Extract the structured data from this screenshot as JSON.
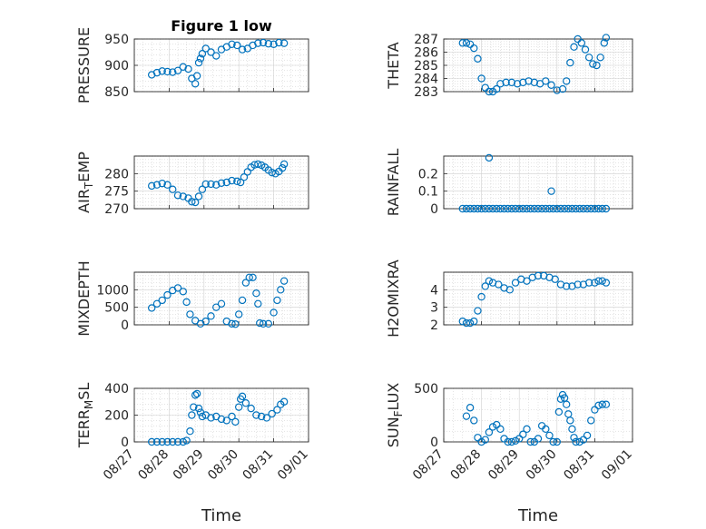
{
  "title": "Figure 1 low",
  "marker_color": "#0072BD",
  "chart_data": [
    {
      "type": "scatter",
      "name": "pressure",
      "ylabel": "PRESSURE",
      "ylim": [
        850,
        950
      ],
      "yticks": [
        850,
        900,
        950
      ],
      "x_tick_labels": [
        "08/27",
        "08/28",
        "08/29",
        "08/30",
        "08/31",
        "09/01"
      ],
      "x_tick_labels_visible": false,
      "xlabel": "",
      "x": [
        0.5,
        0.65,
        0.8,
        0.95,
        1.1,
        1.25,
        1.4,
        1.55,
        1.65,
        1.75,
        1.8,
        1.85,
        1.9,
        1.95,
        2.05,
        2.2,
        2.35,
        2.5,
        2.65,
        2.8,
        2.95,
        3.1,
        3.25,
        3.4,
        3.55,
        3.7,
        3.85,
        4.0,
        4.15,
        4.3
      ],
      "y": [
        882,
        886,
        889,
        888,
        887,
        890,
        897,
        893,
        875,
        865,
        880,
        905,
        913,
        922,
        932,
        925,
        918,
        930,
        935,
        940,
        938,
        930,
        932,
        938,
        942,
        943,
        941,
        940,
        943,
        942
      ]
    },
    {
      "type": "scatter",
      "name": "theta",
      "ylabel": "THETA",
      "ylim": [
        283,
        287
      ],
      "yticks": [
        283,
        284,
        285,
        286,
        287
      ],
      "x_tick_labels": [
        "08/27",
        "08/28",
        "08/29",
        "08/30",
        "08/31",
        "09/01"
      ],
      "x_tick_labels_visible": false,
      "xlabel": "",
      "x": [
        0.5,
        0.6,
        0.7,
        0.8,
        0.9,
        1.0,
        1.1,
        1.2,
        1.3,
        1.4,
        1.5,
        1.65,
        1.8,
        1.95,
        2.1,
        2.25,
        2.4,
        2.55,
        2.7,
        2.85,
        3.0,
        3.15,
        3.25,
        3.35,
        3.45,
        3.55,
        3.65,
        3.75,
        3.85,
        3.95,
        4.05,
        4.15,
        4.25,
        4.3
      ],
      "y": [
        286.7,
        286.7,
        286.6,
        286.3,
        285.5,
        284.0,
        283.3,
        283.0,
        283.0,
        283.2,
        283.6,
        283.7,
        283.7,
        283.6,
        283.7,
        283.8,
        283.7,
        283.6,
        283.8,
        283.5,
        283.1,
        283.2,
        283.8,
        285.2,
        286.4,
        287.0,
        286.7,
        286.2,
        285.6,
        285.1,
        285.0,
        285.6,
        286.7,
        287.1
      ]
    },
    {
      "type": "scatter",
      "name": "air-temp",
      "ylabel": "AIR_TEMP",
      "ylim": [
        270,
        285
      ],
      "yticks": [
        270,
        275,
        280
      ],
      "x_tick_labels": [
        "08/27",
        "08/28",
        "08/29",
        "08/30",
        "08/31",
        "09/01"
      ],
      "x_tick_labels_visible": false,
      "xlabel": "",
      "x": [
        0.5,
        0.65,
        0.8,
        0.95,
        1.1,
        1.25,
        1.4,
        1.55,
        1.65,
        1.75,
        1.85,
        1.95,
        2.05,
        2.2,
        2.35,
        2.5,
        2.65,
        2.8,
        2.95,
        3.05,
        3.15,
        3.25,
        3.35,
        3.45,
        3.55,
        3.65,
        3.75,
        3.85,
        3.95,
        4.05,
        4.15,
        4.25,
        4.3
      ],
      "y": [
        276.5,
        276.8,
        277.2,
        276.8,
        275.5,
        273.8,
        273.5,
        273.0,
        272.0,
        271.8,
        273.5,
        275.5,
        277.0,
        277.0,
        276.8,
        277.3,
        277.5,
        278.0,
        277.8,
        277.5,
        279.0,
        280.5,
        281.8,
        282.5,
        282.7,
        282.4,
        281.8,
        281.0,
        280.3,
        280.0,
        280.6,
        281.6,
        282.7
      ]
    },
    {
      "type": "scatter",
      "name": "rainfall",
      "ylabel": "RAINFALL",
      "ylim": [
        0,
        0.3
      ],
      "yticks": [
        0,
        0.1,
        0.2
      ],
      "x_tick_labels": [
        "08/27",
        "08/28",
        "08/29",
        "08/30",
        "08/31",
        "09/01"
      ],
      "x_tick_labels_visible": false,
      "xlabel": "",
      "x": [
        0.5,
        0.6,
        0.7,
        0.8,
        0.9,
        1.0,
        1.1,
        1.2,
        1.3,
        1.4,
        1.5,
        1.6,
        1.7,
        1.8,
        1.9,
        2.0,
        2.1,
        2.2,
        2.3,
        2.4,
        2.5,
        2.6,
        2.7,
        2.8,
        2.9,
        3.0,
        3.1,
        3.2,
        3.3,
        3.4,
        3.5,
        3.6,
        3.7,
        3.8,
        3.9,
        4.0,
        4.1,
        4.2,
        4.3,
        1.2,
        2.85
      ],
      "y": [
        0,
        0,
        0,
        0,
        0,
        0,
        0,
        0,
        0,
        0,
        0,
        0,
        0,
        0,
        0,
        0,
        0,
        0,
        0,
        0,
        0,
        0,
        0,
        0,
        0,
        0,
        0,
        0,
        0,
        0,
        0,
        0,
        0,
        0,
        0,
        0,
        0,
        0,
        0,
        0.29,
        0.1
      ]
    },
    {
      "type": "scatter",
      "name": "mixdepth",
      "ylabel": "MIXDEPTH",
      "ylim": [
        0,
        1500
      ],
      "yticks": [
        0,
        500,
        1000
      ],
      "x_tick_labels": [
        "08/27",
        "08/28",
        "08/29",
        "08/30",
        "08/31",
        "09/01"
      ],
      "x_tick_labels_visible": false,
      "xlabel": "",
      "x": [
        0.5,
        0.65,
        0.8,
        0.95,
        1.1,
        1.25,
        1.4,
        1.5,
        1.6,
        1.75,
        1.9,
        2.05,
        2.2,
        2.35,
        2.5,
        2.65,
        2.8,
        2.9,
        3.0,
        3.1,
        3.2,
        3.3,
        3.4,
        3.5,
        3.55,
        3.6,
        3.7,
        3.85,
        4.0,
        4.1,
        4.2,
        4.3
      ],
      "y": [
        480,
        600,
        700,
        850,
        980,
        1050,
        950,
        650,
        300,
        120,
        30,
        100,
        250,
        500,
        600,
        100,
        30,
        20,
        300,
        700,
        1200,
        1350,
        1350,
        900,
        600,
        50,
        30,
        30,
        350,
        700,
        1000,
        1250
      ]
    },
    {
      "type": "scatter",
      "name": "h2omixra",
      "ylabel": "H2OMIXRA",
      "ylim": [
        2,
        5
      ],
      "yticks": [
        2,
        3,
        4
      ],
      "x_tick_labels": [
        "08/27",
        "08/28",
        "08/29",
        "08/30",
        "08/31",
        "09/01"
      ],
      "x_tick_labels_visible": false,
      "xlabel": "",
      "x": [
        0.5,
        0.6,
        0.7,
        0.8,
        0.9,
        1.0,
        1.1,
        1.2,
        1.3,
        1.45,
        1.6,
        1.75,
        1.9,
        2.05,
        2.2,
        2.35,
        2.5,
        2.65,
        2.8,
        2.95,
        3.1,
        3.25,
        3.4,
        3.55,
        3.7,
        3.85,
        4.0,
        4.1,
        4.2,
        4.3
      ],
      "y": [
        2.2,
        2.1,
        2.1,
        2.2,
        2.8,
        3.6,
        4.2,
        4.5,
        4.4,
        4.3,
        4.1,
        4.0,
        4.4,
        4.6,
        4.5,
        4.7,
        4.8,
        4.8,
        4.7,
        4.6,
        4.3,
        4.2,
        4.2,
        4.3,
        4.3,
        4.4,
        4.4,
        4.5,
        4.5,
        4.4
      ]
    },
    {
      "type": "scatter",
      "name": "terr-msl",
      "ylabel": "TERR_MSL",
      "ylim": [
        0,
        400
      ],
      "yticks": [
        0,
        200,
        400
      ],
      "x_tick_labels": [
        "08/27",
        "08/28",
        "08/29",
        "08/30",
        "08/31",
        "09/01"
      ],
      "x_tick_labels_visible": true,
      "xlabel": "Time",
      "x": [
        0.5,
        0.65,
        0.8,
        0.95,
        1.1,
        1.25,
        1.4,
        1.5,
        1.6,
        1.65,
        1.7,
        1.75,
        1.8,
        1.85,
        1.9,
        1.95,
        2.05,
        2.2,
        2.35,
        2.5,
        2.65,
        2.8,
        2.9,
        3.0,
        3.05,
        3.1,
        3.2,
        3.35,
        3.5,
        3.65,
        3.8,
        3.95,
        4.1,
        4.2,
        4.3
      ],
      "y": [
        0,
        0,
        0,
        0,
        0,
        0,
        0,
        10,
        80,
        200,
        260,
        350,
        360,
        250,
        220,
        190,
        200,
        180,
        190,
        170,
        160,
        190,
        150,
        260,
        320,
        340,
        290,
        250,
        200,
        190,
        180,
        210,
        240,
        280,
        300
      ]
    },
    {
      "type": "scatter",
      "name": "sun-flux",
      "ylabel": "SUN_FLUX",
      "ylim": [
        0,
        500
      ],
      "yticks": [
        0,
        500
      ],
      "x_tick_labels": [
        "08/27",
        "08/28",
        "08/29",
        "08/30",
        "08/31",
        "09/01"
      ],
      "x_tick_labels_visible": true,
      "xlabel": "Time",
      "x": [
        0.6,
        0.7,
        0.8,
        0.9,
        1.0,
        1.1,
        1.2,
        1.3,
        1.4,
        1.5,
        1.6,
        1.7,
        1.8,
        1.9,
        2.0,
        2.1,
        2.2,
        2.3,
        2.4,
        2.5,
        2.6,
        2.7,
        2.8,
        2.9,
        3.0,
        3.05,
        3.1,
        3.15,
        3.2,
        3.25,
        3.3,
        3.35,
        3.4,
        3.45,
        3.5,
        3.6,
        3.7,
        3.8,
        3.9,
        4.0,
        4.1,
        4.2,
        4.3
      ],
      "y": [
        240,
        320,
        200,
        40,
        0,
        20,
        90,
        140,
        160,
        120,
        30,
        0,
        0,
        10,
        30,
        70,
        120,
        0,
        0,
        30,
        150,
        120,
        60,
        0,
        0,
        280,
        400,
        440,
        410,
        350,
        260,
        200,
        120,
        40,
        0,
        0,
        20,
        60,
        200,
        300,
        340,
        350,
        350
      ]
    }
  ]
}
